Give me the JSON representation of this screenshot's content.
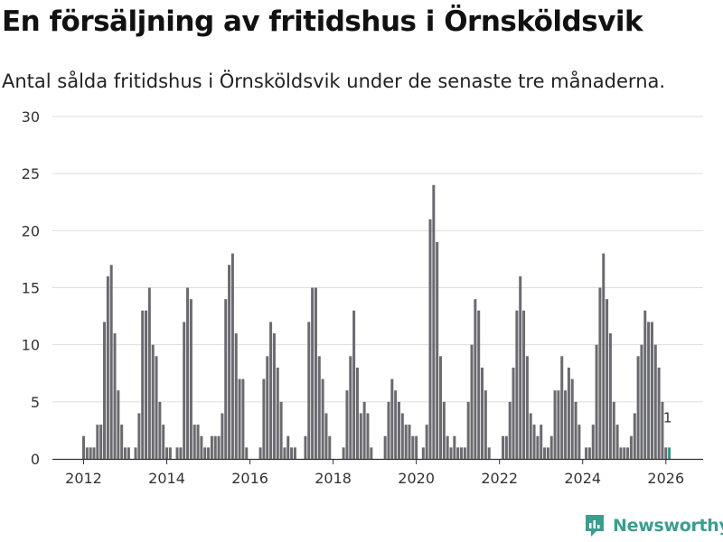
{
  "title": "En försäljning av fritidshus i Örnsköldsvik",
  "subtitle": "Antal sålda fritidshus i Örnsköldsvik under de senaste tre månaderna.",
  "brand": {
    "name": "Newsworthy"
  },
  "colors": {
    "bar": "#6a6a70",
    "highlight": "#2d9a8a",
    "grid": "#dddddd",
    "axis": "#333333",
    "text": "#333333",
    "brand": "#3a9e8f"
  },
  "chart_data": {
    "type": "bar",
    "title": "En försäljning av fritidshus i Örnsköldsvik",
    "xlabel": "",
    "ylabel": "",
    "ylim": [
      0,
      30
    ],
    "yticks": [
      0,
      5,
      10,
      15,
      20,
      25,
      30
    ],
    "xticks": [
      "2012",
      "2014",
      "2016",
      "2018",
      "2020",
      "2022",
      "2024",
      "2026"
    ],
    "x_start": "2012-01",
    "grid": true,
    "highlight_label": "1",
    "values": [
      2,
      1,
      1,
      1,
      3,
      3,
      12,
      16,
      17,
      11,
      6,
      3,
      1,
      1,
      0,
      1,
      4,
      13,
      13,
      15,
      10,
      9,
      5,
      3,
      1,
      1,
      0,
      1,
      1,
      12,
      15,
      14,
      3,
      3,
      2,
      1,
      1,
      2,
      2,
      2,
      4,
      14,
      17,
      18,
      11,
      7,
      7,
      1,
      0,
      0,
      0,
      1,
      7,
      9,
      12,
      11,
      8,
      5,
      1,
      2,
      1,
      1,
      0,
      0,
      2,
      12,
      15,
      15,
      9,
      7,
      4,
      2,
      0,
      0,
      0,
      1,
      6,
      9,
      13,
      8,
      4,
      5,
      4,
      1,
      0,
      0,
      0,
      2,
      5,
      7,
      6,
      5,
      4,
      3,
      3,
      2,
      2,
      0,
      1,
      3,
      21,
      24,
      19,
      9,
      5,
      2,
      1,
      2,
      1,
      1,
      1,
      5,
      10,
      14,
      13,
      8,
      6,
      1,
      0,
      0,
      0,
      2,
      2,
      5,
      8,
      13,
      16,
      13,
      9,
      4,
      3,
      2,
      3,
      1,
      1,
      2,
      6,
      6,
      9,
      6,
      8,
      7,
      5,
      3,
      0,
      1,
      1,
      3,
      10,
      15,
      18,
      14,
      11,
      5,
      3,
      1,
      1,
      1,
      2,
      4,
      9,
      10,
      13,
      12,
      12,
      10,
      8,
      5,
      1,
      1
    ]
  }
}
